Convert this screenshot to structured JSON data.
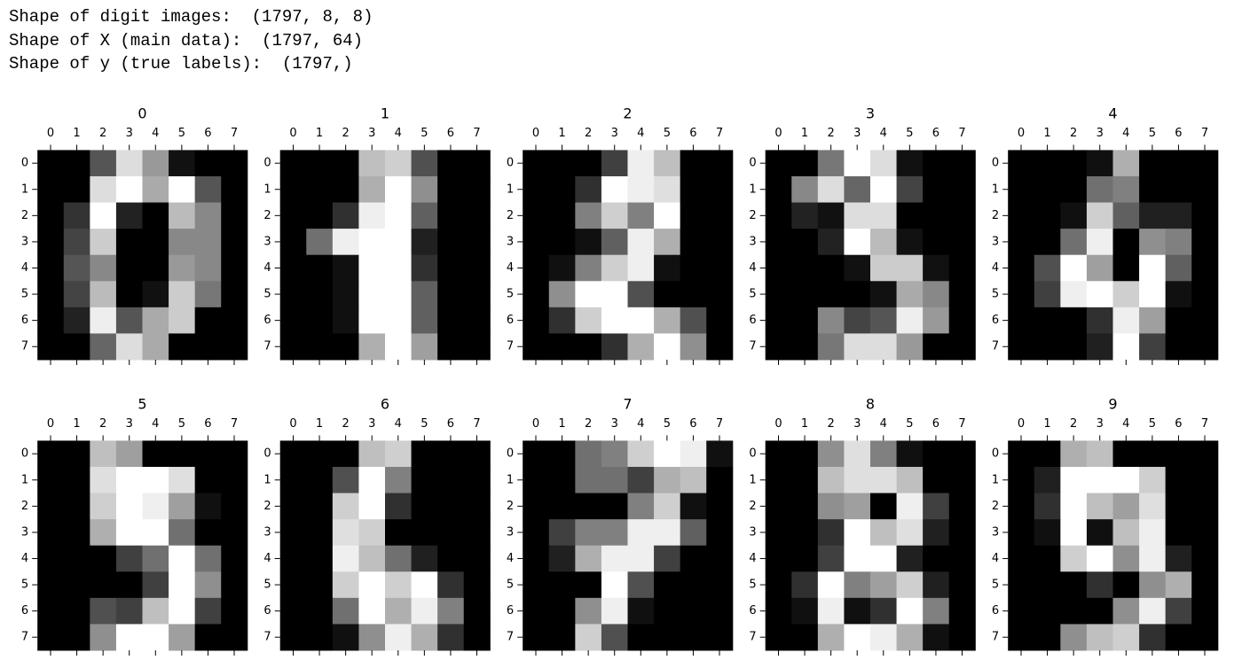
{
  "header": {
    "lines": [
      "Shape of digit images:  (1797, 8, 8)",
      "Shape of X (main data):  (1797, 64)",
      "Shape of y (true labels):  (1797,)"
    ]
  },
  "chart_data": [
    {
      "type": "heatmap",
      "title": "0",
      "cmap": "gray",
      "xticks": [
        0,
        1,
        2,
        3,
        4,
        5,
        6,
        7
      ],
      "yticks": [
        0,
        1,
        2,
        3,
        4,
        5,
        6,
        7
      ],
      "values": [
        [
          0,
          0,
          5,
          13,
          9,
          1,
          0,
          0
        ],
        [
          0,
          0,
          13,
          15,
          10,
          15,
          5,
          0
        ],
        [
          0,
          3,
          15,
          2,
          0,
          11,
          8,
          0
        ],
        [
          0,
          4,
          12,
          0,
          0,
          8,
          8,
          0
        ],
        [
          0,
          5,
          8,
          0,
          0,
          9,
          8,
          0
        ],
        [
          0,
          4,
          11,
          0,
          1,
          12,
          7,
          0
        ],
        [
          0,
          2,
          14,
          5,
          10,
          12,
          0,
          0
        ],
        [
          0,
          0,
          6,
          13,
          10,
          0,
          0,
          0
        ]
      ]
    },
    {
      "type": "heatmap",
      "title": "1",
      "cmap": "gray",
      "xticks": [
        0,
        1,
        2,
        3,
        4,
        5,
        6,
        7
      ],
      "yticks": [
        0,
        1,
        2,
        3,
        4,
        5,
        6,
        7
      ],
      "values": [
        [
          0,
          0,
          0,
          12,
          13,
          5,
          0,
          0
        ],
        [
          0,
          0,
          0,
          11,
          16,
          9,
          0,
          0
        ],
        [
          0,
          0,
          3,
          15,
          16,
          6,
          0,
          0
        ],
        [
          0,
          7,
          15,
          16,
          16,
          2,
          0,
          0
        ],
        [
          0,
          0,
          1,
          16,
          16,
          3,
          0,
          0
        ],
        [
          0,
          0,
          1,
          16,
          16,
          6,
          0,
          0
        ],
        [
          0,
          0,
          1,
          16,
          16,
          6,
          0,
          0
        ],
        [
          0,
          0,
          0,
          11,
          16,
          10,
          0,
          0
        ]
      ]
    },
    {
      "type": "heatmap",
      "title": "2",
      "cmap": "gray",
      "xticks": [
        0,
        1,
        2,
        3,
        4,
        5,
        6,
        7
      ],
      "yticks": [
        0,
        1,
        2,
        3,
        4,
        5,
        6,
        7
      ],
      "values": [
        [
          0,
          0,
          0,
          4,
          15,
          12,
          0,
          0
        ],
        [
          0,
          0,
          3,
          16,
          15,
          14,
          0,
          0
        ],
        [
          0,
          0,
          8,
          13,
          8,
          16,
          0,
          0
        ],
        [
          0,
          0,
          1,
          6,
          15,
          11,
          0,
          0
        ],
        [
          0,
          1,
          8,
          13,
          15,
          1,
          0,
          0
        ],
        [
          0,
          9,
          16,
          16,
          5,
          0,
          0,
          0
        ],
        [
          0,
          3,
          13,
          16,
          16,
          11,
          5,
          0
        ],
        [
          0,
          0,
          0,
          3,
          11,
          16,
          9,
          0
        ]
      ]
    },
    {
      "type": "heatmap",
      "title": "3",
      "cmap": "gray",
      "xticks": [
        0,
        1,
        2,
        3,
        4,
        5,
        6,
        7
      ],
      "yticks": [
        0,
        1,
        2,
        3,
        4,
        5,
        6,
        7
      ],
      "values": [
        [
          0,
          0,
          7,
          15,
          13,
          1,
          0,
          0
        ],
        [
          0,
          8,
          13,
          6,
          15,
          4,
          0,
          0
        ],
        [
          0,
          2,
          1,
          13,
          13,
          0,
          0,
          0
        ],
        [
          0,
          0,
          2,
          15,
          11,
          1,
          0,
          0
        ],
        [
          0,
          0,
          0,
          1,
          12,
          12,
          1,
          0
        ],
        [
          0,
          0,
          0,
          0,
          1,
          10,
          8,
          0
        ],
        [
          0,
          0,
          8,
          4,
          5,
          14,
          9,
          0
        ],
        [
          0,
          0,
          7,
          13,
          13,
          9,
          0,
          0
        ]
      ]
    },
    {
      "type": "heatmap",
      "title": "4",
      "cmap": "gray",
      "xticks": [
        0,
        1,
        2,
        3,
        4,
        5,
        6,
        7
      ],
      "yticks": [
        0,
        1,
        2,
        3,
        4,
        5,
        6,
        7
      ],
      "values": [
        [
          0,
          0,
          0,
          1,
          11,
          0,
          0,
          0
        ],
        [
          0,
          0,
          0,
          7,
          8,
          0,
          0,
          0
        ],
        [
          0,
          0,
          1,
          13,
          6,
          2,
          2,
          0
        ],
        [
          0,
          0,
          7,
          15,
          0,
          9,
          8,
          0
        ],
        [
          0,
          5,
          16,
          10,
          0,
          16,
          6,
          0
        ],
        [
          0,
          4,
          15,
          16,
          13,
          16,
          1,
          0
        ],
        [
          0,
          0,
          0,
          3,
          15,
          10,
          0,
          0
        ],
        [
          0,
          0,
          0,
          2,
          16,
          4,
          0,
          0
        ]
      ]
    },
    {
      "type": "heatmap",
      "title": "5",
      "cmap": "gray",
      "xticks": [
        0,
        1,
        2,
        3,
        4,
        5,
        6,
        7
      ],
      "yticks": [
        0,
        1,
        2,
        3,
        4,
        5,
        6,
        7
      ],
      "values": [
        [
          0,
          0,
          12,
          10,
          0,
          0,
          0,
          0
        ],
        [
          0,
          0,
          14,
          16,
          16,
          14,
          0,
          0
        ],
        [
          0,
          0,
          13,
          16,
          15,
          10,
          1,
          0
        ],
        [
          0,
          0,
          11,
          16,
          16,
          7,
          0,
          0
        ],
        [
          0,
          0,
          0,
          4,
          7,
          16,
          7,
          0
        ],
        [
          0,
          0,
          0,
          0,
          4,
          16,
          9,
          0
        ],
        [
          0,
          0,
          5,
          4,
          12,
          16,
          4,
          0
        ],
        [
          0,
          0,
          9,
          16,
          16,
          10,
          0,
          0
        ]
      ]
    },
    {
      "type": "heatmap",
      "title": "6",
      "cmap": "gray",
      "xticks": [
        0,
        1,
        2,
        3,
        4,
        5,
        6,
        7
      ],
      "yticks": [
        0,
        1,
        2,
        3,
        4,
        5,
        6,
        7
      ],
      "values": [
        [
          0,
          0,
          0,
          12,
          13,
          0,
          0,
          0
        ],
        [
          0,
          0,
          5,
          16,
          8,
          0,
          0,
          0
        ],
        [
          0,
          0,
          13,
          16,
          3,
          0,
          0,
          0
        ],
        [
          0,
          0,
          14,
          13,
          0,
          0,
          0,
          0
        ],
        [
          0,
          0,
          15,
          12,
          7,
          2,
          0,
          0
        ],
        [
          0,
          0,
          13,
          16,
          13,
          16,
          3,
          0
        ],
        [
          0,
          0,
          7,
          16,
          11,
          15,
          8,
          0
        ],
        [
          0,
          0,
          1,
          9,
          15,
          11,
          3,
          0
        ]
      ]
    },
    {
      "type": "heatmap",
      "title": "7",
      "cmap": "gray",
      "xticks": [
        0,
        1,
        2,
        3,
        4,
        5,
        6,
        7
      ],
      "yticks": [
        0,
        1,
        2,
        3,
        4,
        5,
        6,
        7
      ],
      "values": [
        [
          0,
          0,
          7,
          8,
          13,
          16,
          15,
          1
        ],
        [
          0,
          0,
          7,
          7,
          4,
          11,
          12,
          0
        ],
        [
          0,
          0,
          0,
          0,
          8,
          13,
          1,
          0
        ],
        [
          0,
          4,
          8,
          8,
          15,
          15,
          6,
          0
        ],
        [
          0,
          2,
          11,
          15,
          15,
          4,
          0,
          0
        ],
        [
          0,
          0,
          0,
          16,
          5,
          0,
          0,
          0
        ],
        [
          0,
          0,
          9,
          15,
          1,
          0,
          0,
          0
        ],
        [
          0,
          0,
          13,
          5,
          0,
          0,
          0,
          0
        ]
      ]
    },
    {
      "type": "heatmap",
      "title": "8",
      "cmap": "gray",
      "xticks": [
        0,
        1,
        2,
        3,
        4,
        5,
        6,
        7
      ],
      "yticks": [
        0,
        1,
        2,
        3,
        4,
        5,
        6,
        7
      ],
      "values": [
        [
          0,
          0,
          9,
          14,
          8,
          1,
          0,
          0
        ],
        [
          0,
          0,
          12,
          14,
          14,
          12,
          0,
          0
        ],
        [
          0,
          0,
          9,
          10,
          0,
          15,
          4,
          0
        ],
        [
          0,
          0,
          3,
          16,
          12,
          14,
          2,
          0
        ],
        [
          0,
          0,
          4,
          16,
          16,
          2,
          0,
          0
        ],
        [
          0,
          3,
          16,
          8,
          10,
          13,
          2,
          0
        ],
        [
          0,
          1,
          15,
          1,
          3,
          16,
          8,
          0
        ],
        [
          0,
          0,
          11,
          16,
          15,
          11,
          1,
          0
        ]
      ]
    },
    {
      "type": "heatmap",
      "title": "9",
      "cmap": "gray",
      "xticks": [
        0,
        1,
        2,
        3,
        4,
        5,
        6,
        7
      ],
      "yticks": [
        0,
        1,
        2,
        3,
        4,
        5,
        6,
        7
      ],
      "values": [
        [
          0,
          0,
          11,
          12,
          0,
          0,
          0,
          0
        ],
        [
          0,
          2,
          16,
          16,
          16,
          13,
          0,
          0
        ],
        [
          0,
          3,
          16,
          12,
          10,
          14,
          0,
          0
        ],
        [
          0,
          1,
          16,
          1,
          12,
          15,
          0,
          0
        ],
        [
          0,
          0,
          13,
          16,
          9,
          15,
          2,
          0
        ],
        [
          0,
          0,
          0,
          3,
          0,
          9,
          11,
          0
        ],
        [
          0,
          0,
          0,
          0,
          9,
          15,
          4,
          0
        ],
        [
          0,
          0,
          9,
          12,
          13,
          3,
          0,
          0
        ]
      ]
    }
  ]
}
